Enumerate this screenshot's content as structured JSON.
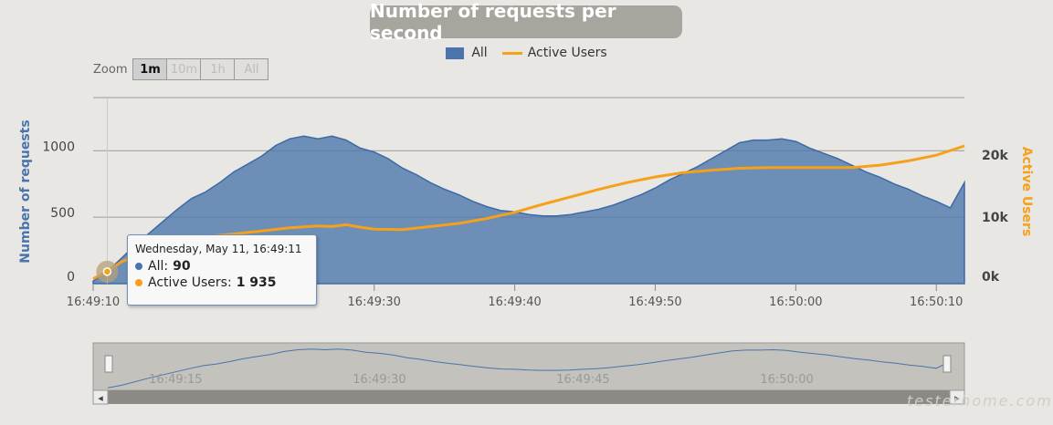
{
  "chart_data": {
    "type": "area",
    "title": "Number of requests per second",
    "legend": [
      {
        "name": "All",
        "color": "#4a74ab",
        "kind": "area"
      },
      {
        "name": "Active Users",
        "color": "#f5a11c",
        "kind": "line"
      }
    ],
    "legend_position": "top-center",
    "grid": true,
    "x_axis": {
      "start": "16:49:10",
      "end": "16:50:12",
      "ticks": [
        "16:49:10",
        "16:49:20",
        "16:49:30",
        "16:49:40",
        "16:49:50",
        "16:50:00",
        "16:50:10"
      ]
    },
    "y_left": {
      "label": "Number of requests",
      "min": 0,
      "max": 1400,
      "ticks": [
        "0",
        "500",
        "1000"
      ]
    },
    "y_right": {
      "label": "Active Users",
      "min": 0,
      "max": 30000,
      "ticks": [
        "0k",
        "10k",
        "20k"
      ]
    },
    "series": [
      {
        "name": "All",
        "x": [
          "16:49:10",
          "16:49:11",
          "16:49:12",
          "16:49:13",
          "16:49:14",
          "16:49:15",
          "16:49:16",
          "16:49:17",
          "16:49:18",
          "16:49:19",
          "16:49:20",
          "16:49:21",
          "16:49:22",
          "16:49:23",
          "16:49:24",
          "16:49:25",
          "16:49:26",
          "16:49:27",
          "16:49:28",
          "16:49:29",
          "16:49:30",
          "16:49:31",
          "16:49:32",
          "16:49:33",
          "16:49:34",
          "16:49:35",
          "16:49:36",
          "16:49:37",
          "16:49:38",
          "16:49:39",
          "16:49:40",
          "16:49:41",
          "16:49:42",
          "16:49:43",
          "16:49:44",
          "16:49:45",
          "16:49:46",
          "16:49:47",
          "16:49:48",
          "16:49:49",
          "16:49:50",
          "16:49:51",
          "16:49:52",
          "16:49:53",
          "16:49:54",
          "16:49:55",
          "16:49:56",
          "16:49:57",
          "16:49:58",
          "16:49:59",
          "16:50:00",
          "16:50:01",
          "16:50:02",
          "16:50:03",
          "16:50:04",
          "16:50:05",
          "16:50:06",
          "16:50:07",
          "16:50:08",
          "16:50:09",
          "16:50:10",
          "16:50:11",
          "16:50:12"
        ],
        "y": [
          20,
          90,
          190,
          290,
          380,
          470,
          560,
          640,
          690,
          760,
          840,
          900,
          960,
          1040,
          1090,
          1110,
          1090,
          1110,
          1080,
          1020,
          990,
          940,
          870,
          820,
          760,
          710,
          670,
          620,
          580,
          550,
          540,
          520,
          510,
          510,
          520,
          540,
          560,
          590,
          630,
          670,
          720,
          780,
          830,
          880,
          940,
          1000,
          1060,
          1080,
          1080,
          1090,
          1070,
          1020,
          980,
          940,
          890,
          840,
          800,
          750,
          710,
          660,
          620,
          570,
          760
        ]
      },
      {
        "name": "Active Users",
        "x": [
          "16:49:10",
          "16:49:11",
          "16:49:12",
          "16:49:14",
          "16:49:16",
          "16:49:18",
          "16:49:20",
          "16:49:22",
          "16:49:24",
          "16:49:26",
          "16:49:27",
          "16:49:28",
          "16:49:29",
          "16:49:30",
          "16:49:32",
          "16:49:34",
          "16:49:36",
          "16:49:38",
          "16:49:40",
          "16:49:42",
          "16:49:44",
          "16:49:46",
          "16:49:48",
          "16:49:50",
          "16:49:52",
          "16:49:54",
          "16:49:56",
          "16:49:58",
          "16:50:00",
          "16:50:02",
          "16:50:04",
          "16:50:06",
          "16:50:08",
          "16:50:10",
          "16:50:12"
        ],
        "y": [
          800,
          1935,
          3500,
          5500,
          6800,
          7600,
          8000,
          8500,
          9000,
          9300,
          9200,
          9500,
          9100,
          8800,
          8700,
          9200,
          9700,
          10500,
          11500,
          12800,
          14000,
          15200,
          16300,
          17200,
          17900,
          18300,
          18600,
          18700,
          18700,
          18700,
          18700,
          19100,
          19800,
          20700,
          22200
        ]
      }
    ],
    "tooltip": {
      "header": "Wednesday, May 11, 16:49:11",
      "rows": [
        {
          "series": "All",
          "label": "All:",
          "value": "90",
          "color": "#4a74ab"
        },
        {
          "series": "Active Users",
          "label": "Active Users:",
          "value": "1 935",
          "color": "#f5a11c"
        }
      ]
    },
    "navigator": {
      "ticks": [
        "16:49:15",
        "16:49:30",
        "16:49:45",
        "16:50:00"
      ]
    }
  },
  "zoom": {
    "label": "Zoom",
    "buttons": [
      {
        "label": "1m",
        "active": true
      },
      {
        "label": "10m",
        "active": false
      },
      {
        "label": "1h",
        "active": false
      },
      {
        "label": "All",
        "active": false
      }
    ]
  },
  "watermark": "testerhome.com"
}
